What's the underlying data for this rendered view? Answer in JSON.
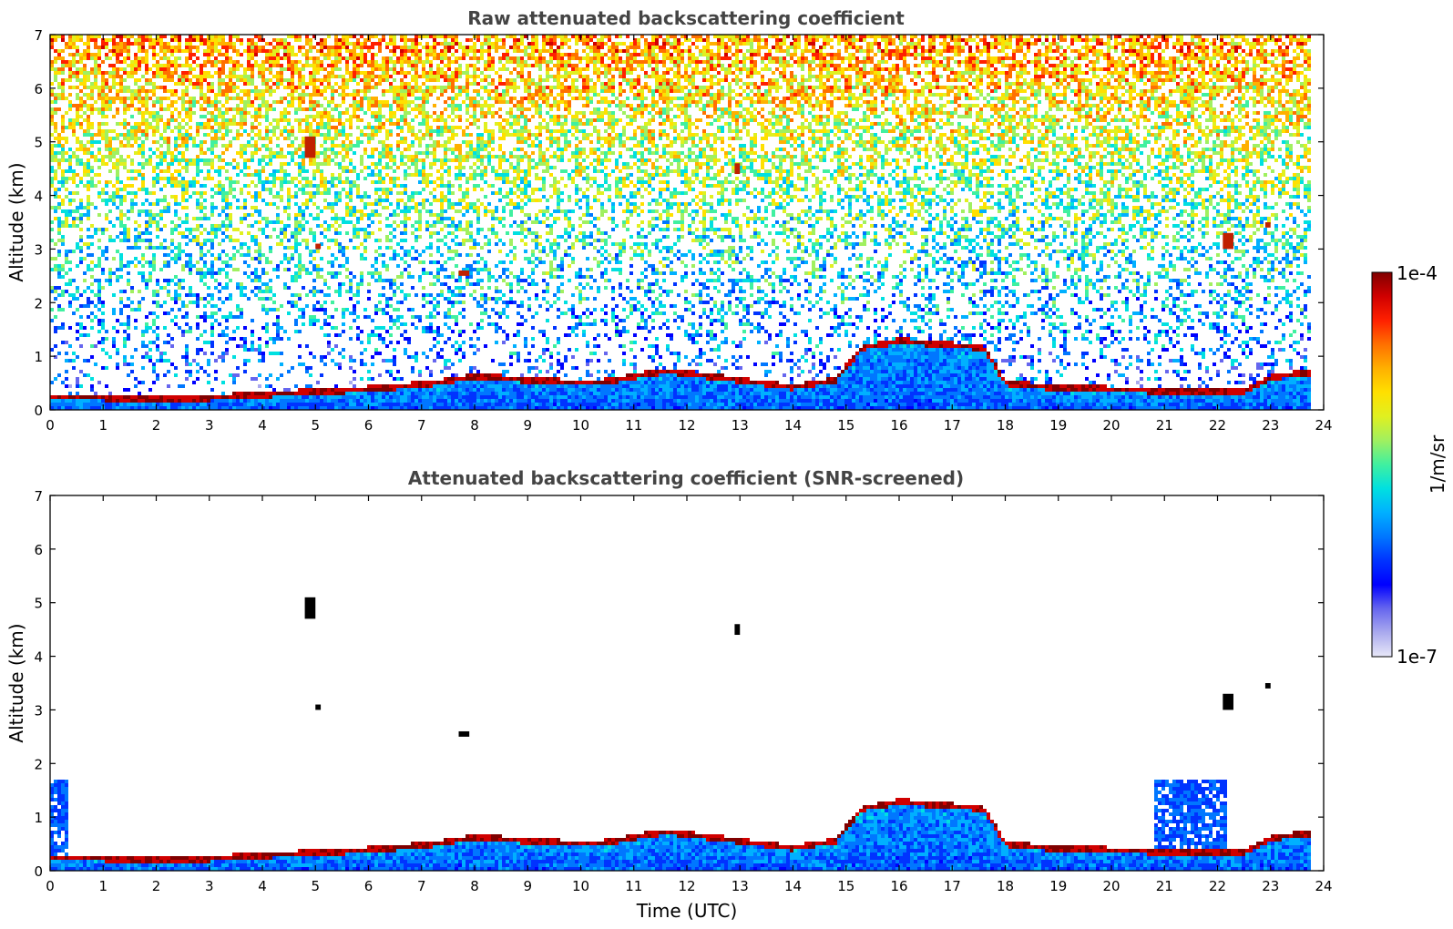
{
  "chart_data": [
    {
      "type": "heatmap",
      "title": "Raw attenuated backscattering coefficient",
      "ylabel": "Altitude (km)",
      "xlabel": "",
      "xlim": [
        0,
        24
      ],
      "ylim": [
        0,
        7
      ],
      "x_ticks": [
        0,
        1,
        2,
        3,
        4,
        5,
        6,
        7,
        8,
        9,
        10,
        11,
        12,
        13,
        14,
        15,
        16,
        17,
        18,
        19,
        20,
        21,
        22,
        23,
        24
      ],
      "y_ticks": [
        0,
        1,
        2,
        3,
        4,
        5,
        6,
        7
      ],
      "x_tick_labels": [
        "0",
        "1",
        "2",
        "3",
        "4",
        "5",
        "6",
        "7",
        "8",
        "9",
        "10",
        "11",
        "12",
        "13",
        "14",
        "15",
        "16",
        "17",
        "18",
        "19",
        "20",
        "21",
        "22",
        "23",
        "24"
      ],
      "y_tick_labels": [
        "0",
        "1",
        "2",
        "3",
        "4",
        "5",
        "6",
        "7"
      ],
      "data_end_x": 23.8,
      "boundary_layer_top_km": [
        [
          0.4,
          0.23
        ],
        [
          1,
          0.22
        ],
        [
          2,
          0.2
        ],
        [
          3,
          0.22
        ],
        [
          4,
          0.28
        ],
        [
          4.8,
          0.32
        ],
        [
          5.5,
          0.35
        ],
        [
          6.5,
          0.42
        ],
        [
          7.3,
          0.5
        ],
        [
          8,
          0.62
        ],
        [
          9,
          0.55
        ],
        [
          10,
          0.5
        ],
        [
          10.5,
          0.52
        ],
        [
          11,
          0.62
        ],
        [
          11.6,
          0.72
        ],
        [
          14,
          0.42
        ],
        [
          14.8,
          0.55
        ],
        [
          15.3,
          1.15
        ],
        [
          16,
          1.28
        ],
        [
          17,
          1.2
        ],
        [
          17.6,
          1.15
        ],
        [
          18,
          0.5
        ],
        [
          19,
          0.4
        ],
        [
          20,
          0.38
        ],
        [
          20.8,
          0.35
        ],
        [
          21.5,
          0.32
        ],
        [
          22.5,
          0.35
        ],
        [
          23,
          0.6
        ],
        [
          23.8,
          0.7
        ]
      ],
      "elevated_layers": [
        {
          "x": [
            4.8,
            5.0
          ],
          "y": [
            4.7,
            5.1
          ]
        },
        {
          "x": [
            5.0,
            5.1
          ],
          "y": [
            3.0,
            3.1
          ]
        },
        {
          "x": [
            7.7,
            7.9
          ],
          "y": [
            2.5,
            2.6
          ]
        },
        {
          "x": [
            12.9,
            13.0
          ],
          "y": [
            4.4,
            4.6
          ]
        },
        {
          "x": [
            22.1,
            22.3
          ],
          "y": [
            3.0,
            3.3
          ]
        },
        {
          "x": [
            22.9,
            23.0
          ],
          "y": [
            3.4,
            3.5
          ]
        }
      ]
    },
    {
      "type": "heatmap",
      "title": "Attenuated backscattering coefficient (SNR-screened)",
      "ylabel": "Altitude (km)",
      "xlabel": "Time (UTC)",
      "xlim": [
        0,
        24
      ],
      "ylim": [
        0,
        7
      ],
      "x_ticks": [
        0,
        1,
        2,
        3,
        4,
        5,
        6,
        7,
        8,
        9,
        10,
        11,
        12,
        13,
        14,
        15,
        16,
        17,
        18,
        19,
        20,
        21,
        22,
        23,
        24
      ],
      "y_ticks": [
        0,
        1,
        2,
        3,
        4,
        5,
        6,
        7
      ],
      "x_tick_labels": [
        "0",
        "1",
        "2",
        "3",
        "4",
        "5",
        "6",
        "7",
        "8",
        "9",
        "10",
        "11",
        "12",
        "13",
        "14",
        "15",
        "16",
        "17",
        "18",
        "19",
        "20",
        "21",
        "22",
        "23",
        "24"
      ],
      "y_tick_labels": [
        "0",
        "1",
        "2",
        "3",
        "4",
        "5",
        "6",
        "7"
      ],
      "data_end_x": 23.8
    }
  ],
  "colorbar": {
    "max_label": "1e-4",
    "min_label": "1e-7",
    "unit_label": "1/m/sr",
    "colors": [
      "#e8e8f8",
      "#aaaaee",
      "#6666ee",
      "#0000ff",
      "#0033ff",
      "#0077ff",
      "#00b0ff",
      "#00e0e0",
      "#40f0a0",
      "#a0f060",
      "#e0f020",
      "#ffe000",
      "#ffb000",
      "#ff7000",
      "#ff2000",
      "#d00000",
      "#800000"
    ]
  }
}
